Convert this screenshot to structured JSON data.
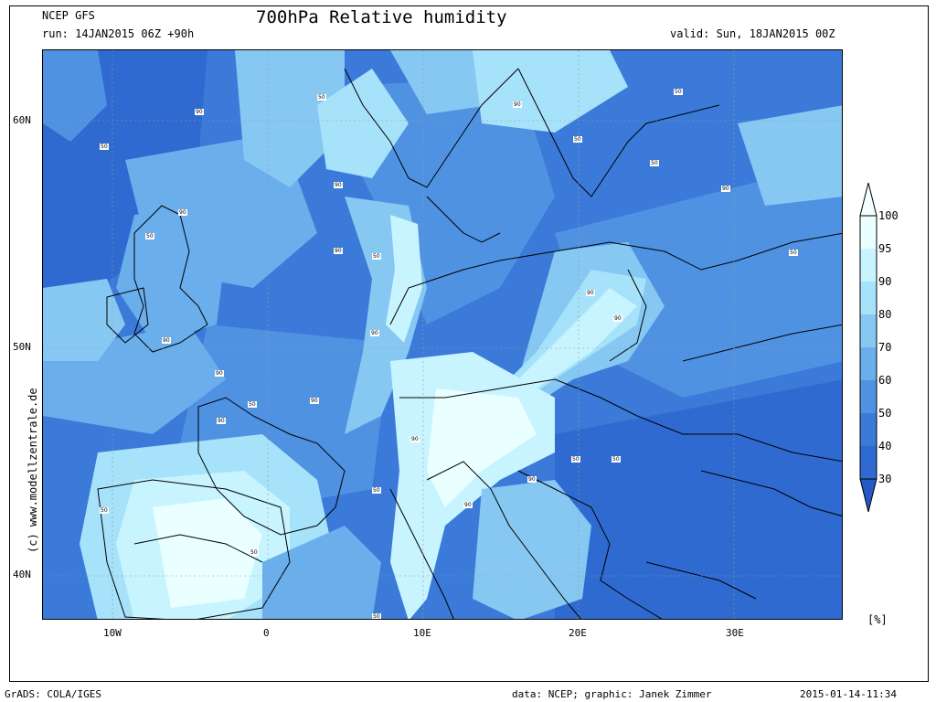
{
  "header": {
    "model": "NCEP GFS",
    "title": "700hPa Relative humidity",
    "run": "run: 14JAN2015 06Z +90h",
    "valid": "valid: Sun, 18JAN2015 00Z"
  },
  "footer": {
    "grads": "GrADS: COLA/IGES",
    "data": "data: NCEP; graphic: Janek Zimmer",
    "timestamp": "2015-01-14-11:34"
  },
  "credit": "(c) www.modellzentrale.de",
  "map": {
    "lat_labels": [
      "60N",
      "50N",
      "40N"
    ],
    "lon_labels": [
      "10W",
      "0",
      "10E",
      "20E",
      "30E"
    ],
    "contour_labels": [
      "50",
      "90",
      "50",
      "90",
      "50",
      "90",
      "50",
      "90",
      "50",
      "50",
      "90",
      "90",
      "90",
      "50",
      "90",
      "90",
      "50",
      "90",
      "90",
      "50",
      "90",
      "50",
      "50",
      "90",
      "90",
      "50",
      "90",
      "50",
      "50",
      "50",
      "90"
    ]
  },
  "colorbar": {
    "unit": "[%]",
    "levels": [
      "100",
      "95",
      "90",
      "80",
      "70",
      "60",
      "50",
      "40",
      "30"
    ],
    "colors": [
      "#eaffff",
      "#c8f4ff",
      "#a6e2fa",
      "#86c8f2",
      "#6aaeec",
      "#4f92e2",
      "#3b7ad8",
      "#2f6ad0"
    ],
    "top_color": "#f4ffff",
    "bottom_color": "#2458c4"
  }
}
